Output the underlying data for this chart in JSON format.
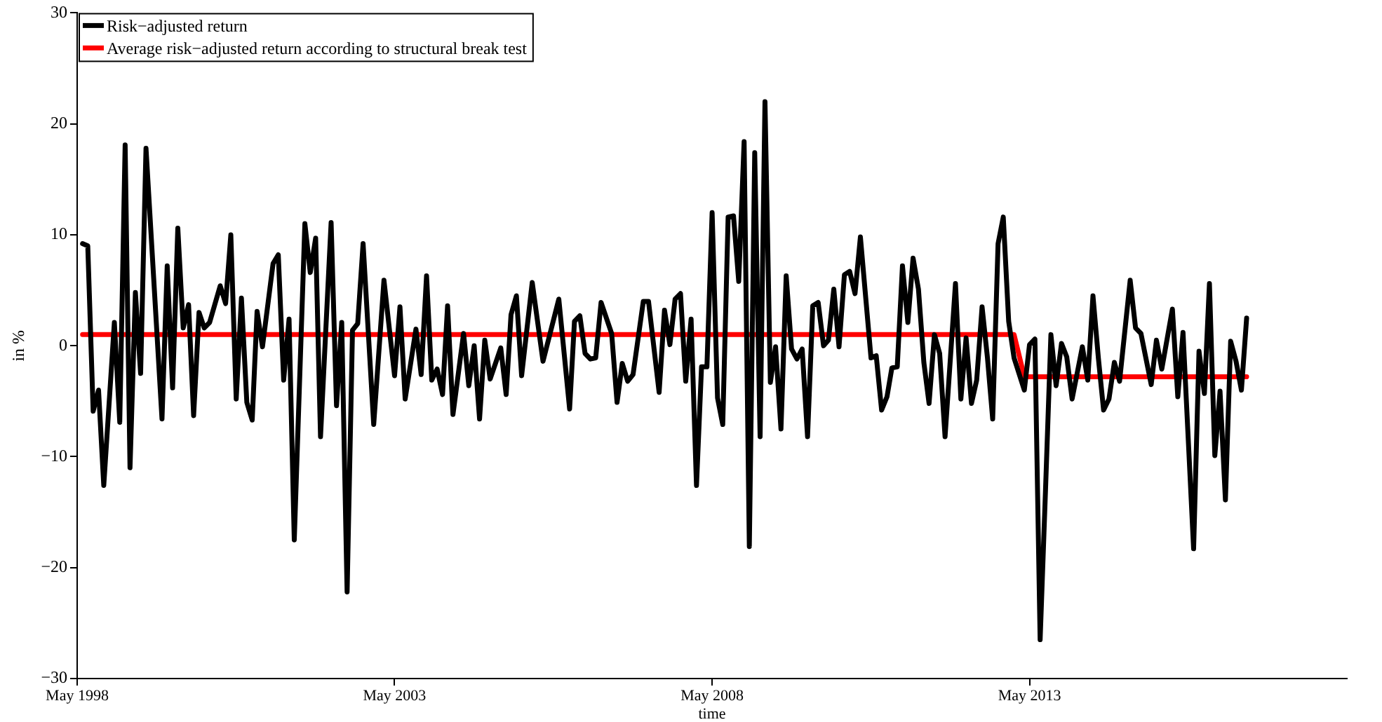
{
  "chart_data": {
    "type": "line",
    "xlabel": "time",
    "ylabel": "in %",
    "legend": "top left",
    "grid": false,
    "marker": "none",
    "xlim": [
      "1998-05",
      "2018-05"
    ],
    "xticks": [
      {
        "value": "1998-05",
        "label": "May 1998"
      },
      {
        "value": "2003-05",
        "label": "May 2003"
      },
      {
        "value": "2008-05",
        "label": "May 2008"
      },
      {
        "value": "2013-05",
        "label": "May 2013"
      }
    ],
    "ylim": [
      -30,
      30
    ],
    "yticks": [
      -30,
      -20,
      -10,
      0,
      10,
      20,
      30
    ],
    "series": [
      {
        "name": "Risk−adjusted return",
        "color": "#000000",
        "x": [
          "1998-06",
          "1998-07",
          "1998-08",
          "1998-09",
          "1998-10",
          "1998-12",
          "1999-01",
          "1999-02",
          "1999-03",
          "1999-04",
          "1999-05",
          "1999-06",
          "1999-09",
          "1999-10",
          "1999-11",
          "1999-12",
          "2000-01",
          "2000-02",
          "2000-03",
          "2000-04",
          "2000-05",
          "2000-06",
          "2000-08",
          "2000-09",
          "2000-10",
          "2000-11",
          "2000-12",
          "2001-01",
          "2001-02",
          "2001-03",
          "2001-04",
          "2001-06",
          "2001-07",
          "2001-08",
          "2001-09",
          "2001-10",
          "2001-12",
          "2002-01",
          "2002-02",
          "2002-03",
          "2002-05",
          "2002-06",
          "2002-07",
          "2002-08",
          "2002-09",
          "2002-10",
          "2002-11",
          "2003-01",
          "2003-03",
          "2003-05",
          "2003-06",
          "2003-07",
          "2003-09",
          "2003-10",
          "2003-11",
          "2003-12",
          "2004-01",
          "2004-02",
          "2004-03",
          "2004-04",
          "2004-06",
          "2004-07",
          "2004-08",
          "2004-09",
          "2004-10",
          "2004-11",
          "2005-01",
          "2005-02",
          "2005-03",
          "2005-04",
          "2005-05",
          "2005-07",
          "2005-09",
          "2005-12",
          "2006-02",
          "2006-03",
          "2006-04",
          "2006-05",
          "2006-06",
          "2006-07",
          "2006-08",
          "2006-10",
          "2006-11",
          "2006-12",
          "2007-01",
          "2007-02",
          "2007-04",
          "2007-05",
          "2007-07",
          "2007-08",
          "2007-09",
          "2007-10",
          "2007-11",
          "2007-12",
          "2008-01",
          "2008-02",
          "2008-03",
          "2008-04",
          "2008-05",
          "2008-06",
          "2008-07",
          "2008-08",
          "2008-09",
          "2008-10",
          "2008-11",
          "2008-12",
          "2009-01",
          "2009-02",
          "2009-03",
          "2009-04",
          "2009-05",
          "2009-06",
          "2009-07",
          "2009-08",
          "2009-09",
          "2009-10",
          "2009-11",
          "2009-12",
          "2010-01",
          "2010-02",
          "2010-03",
          "2010-04",
          "2010-05",
          "2010-06",
          "2010-07",
          "2010-08",
          "2010-09",
          "2010-11",
          "2010-12",
          "2011-01",
          "2011-02",
          "2011-03",
          "2011-04",
          "2011-05",
          "2011-06",
          "2011-07",
          "2011-08",
          "2011-09",
          "2011-10",
          "2011-11",
          "2011-12",
          "2012-01",
          "2012-03",
          "2012-04",
          "2012-05",
          "2012-06",
          "2012-07",
          "2012-08",
          "2012-09",
          "2012-10",
          "2012-11",
          "2012-12",
          "2013-01",
          "2013-02",
          "2013-04",
          "2013-05",
          "2013-06",
          "2013-07",
          "2013-08",
          "2013-09",
          "2013-10",
          "2013-11",
          "2013-12",
          "2014-01",
          "2014-03",
          "2014-04",
          "2014-05",
          "2014-06",
          "2014-07",
          "2014-08",
          "2014-09",
          "2014-10",
          "2014-12",
          "2015-01",
          "2015-02",
          "2015-04",
          "2015-05",
          "2015-06",
          "2015-08",
          "2015-09",
          "2015-10",
          "2015-12",
          "2016-01",
          "2016-02",
          "2016-03",
          "2016-04",
          "2016-05",
          "2016-06",
          "2016-07",
          "2016-08",
          "2016-09",
          "2016-10"
        ],
        "values": [
          9.2,
          9.0,
          -5.9,
          -4.0,
          -12.6,
          2.1,
          -6.9,
          18.1,
          -11.0,
          4.8,
          -2.5,
          17.8,
          -6.6,
          7.2,
          -3.8,
          10.6,
          1.6,
          3.7,
          -6.3,
          3.0,
          1.6,
          2.1,
          5.4,
          3.8,
          10.0,
          -4.8,
          4.3,
          -5.1,
          -6.7,
          3.1,
          -0.1,
          7.4,
          8.2,
          -3.1,
          2.4,
          -17.5,
          11.0,
          6.6,
          9.7,
          -8.2,
          11.1,
          -5.4,
          2.1,
          -22.2,
          1.4,
          2.0,
          9.2,
          -7.1,
          5.9,
          -2.7,
          3.5,
          -4.8,
          1.5,
          -2.6,
          6.3,
          -3.1,
          -2.1,
          -4.4,
          3.6,
          -6.2,
          1.1,
          -3.6,
          0,
          -6.6,
          0.5,
          -3.0,
          -0.2,
          -4.4,
          2.8,
          4.5,
          -2.7,
          5.7,
          -1.4,
          4.2,
          -5.7,
          2.2,
          2.7,
          -0.7,
          -1.2,
          -1.1,
          3.9,
          1.1,
          -5.1,
          -1.6,
          -3.2,
          -2.6,
          4.0,
          4.0,
          -4.2,
          3.2,
          0.1,
          4.2,
          4.7,
          -3.2,
          2.4,
          -12.6,
          -1.9,
          -1.9,
          12.0,
          -4.7,
          -7.1,
          11.6,
          11.7,
          5.8,
          18.4,
          -18.1,
          17.4,
          -8.2,
          22.0,
          -3.3,
          -0.1,
          -7.5,
          6.3,
          -0.3,
          -1.2,
          -0.3,
          -8.2,
          3.6,
          3.9,
          0,
          0.5,
          5.1,
          -0.1,
          6.4,
          6.7,
          4.7,
          9.8,
          -1.1,
          -0.9,
          -5.8,
          -4.6,
          -2.0,
          -1.9,
          7.2,
          2.1,
          7.9,
          5.1,
          -1.5,
          -5.2,
          1.0,
          -0.7,
          -8.2,
          5.6,
          -4.8,
          0.7,
          -5.2,
          -3.1,
          3.5,
          -1.1,
          -6.6,
          9.2,
          11.6,
          2.2,
          -1.1,
          -4.0,
          0.1,
          0.6,
          -26.5,
          -13.0,
          1.0,
          -3.6,
          0.2,
          -1.0,
          -4.8,
          -0.1,
          -3.1,
          4.5,
          -1.1,
          -5.8,
          -4.8,
          -1.5,
          -3.2,
          5.9,
          1.6,
          1.1,
          -3.5,
          0.5,
          -2.1,
          3.3,
          -4.6,
          1.2,
          -18.3,
          -0.5,
          -4.3,
          5.6,
          -9.9,
          -4.1,
          -13.9,
          0.4,
          -1.4,
          -4.0,
          2.5
        ]
      },
      {
        "name": "Average risk−adjusted return according to structural break test",
        "color": "#ff0000",
        "x": [
          "1998-06",
          "2013-02",
          "2013-04",
          "2016-10"
        ],
        "values": [
          1.0,
          1.0,
          -2.8,
          -2.8
        ]
      }
    ]
  }
}
